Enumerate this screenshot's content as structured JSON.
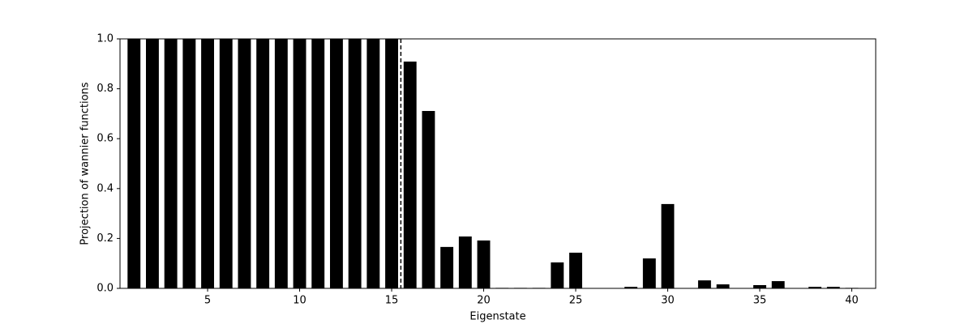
{
  "chart_data": {
    "type": "bar",
    "xlabel": "Eigenstate",
    "ylabel": "Projection of wannier functions",
    "x": [
      1,
      2,
      3,
      4,
      5,
      6,
      7,
      8,
      9,
      10,
      11,
      12,
      13,
      14,
      15,
      16,
      17,
      18,
      19,
      20,
      21,
      22,
      23,
      24,
      25,
      26,
      27,
      28,
      29,
      30,
      31,
      32,
      33,
      34,
      35,
      36,
      37,
      38,
      39,
      40
    ],
    "values": [
      1.0,
      1.0,
      1.0,
      1.0,
      1.0,
      1.0,
      1.0,
      1.0,
      1.0,
      1.0,
      1.0,
      1.0,
      1.0,
      1.0,
      1.0,
      0.909,
      0.711,
      0.166,
      0.208,
      0.192,
      0.002,
      0.002,
      0.002,
      0.104,
      0.143,
      0.001,
      0.001,
      0.006,
      0.12,
      0.338,
      0.001,
      0.032,
      0.016,
      0.001,
      0.013,
      0.029,
      0.001,
      0.006,
      0.006,
      0.002
    ],
    "color": "#000000",
    "bar_width": 0.7,
    "vline": 15.5,
    "xlim": [
      0.24,
      41.3
    ],
    "xticks": [
      5,
      10,
      15,
      20,
      25,
      30,
      35,
      40
    ],
    "ylim": [
      0,
      1
    ],
    "yticks": [
      {
        "value": 0,
        "label": "0.0"
      },
      0.2,
      0.4,
      0.6,
      0.8,
      {
        "value": 1,
        "label": "1.0"
      }
    ],
    "grid": false
  }
}
